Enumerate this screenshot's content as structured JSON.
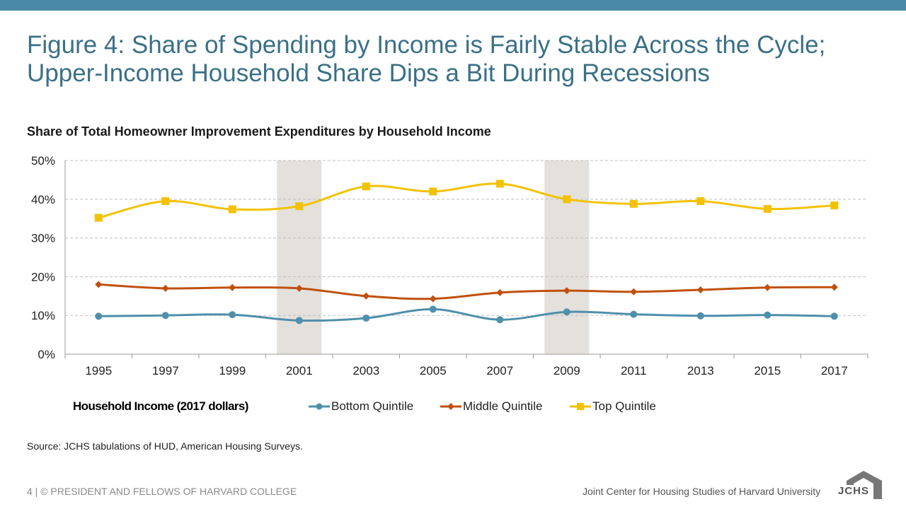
{
  "slide": {
    "title": "Figure 4: Share of Spending by Income is Fairly Stable Across the Cycle; Upper-Income Household Share Dips a Bit During Recessions",
    "source": "Source: JCHS tabulations of HUD, American Housing Surveys.",
    "footer_left": "4 | © PRESIDENT AND FELLOWS OF HARVARD COLLEGE",
    "footer_right": "Joint Center for Housing Studies of Harvard University",
    "logo_text": "JCHS"
  },
  "colors": {
    "top_bar": "#4a8aa8",
    "title": "#3a7086",
    "bottom": "#4f8fab",
    "middle": "#c0500c",
    "top": "#f2c200",
    "recession": "#e4e0db",
    "grid": "#bfbfbf"
  },
  "chart_data": {
    "type": "line",
    "title": "Share of Total Homeowner Improvement Expenditures by Household Income",
    "legend_title": "Household Income (2017 dollars)",
    "legend_position": "bottom",
    "x": [
      "1995",
      "1997",
      "1999",
      "2001",
      "2003",
      "2005",
      "2007",
      "2009",
      "2011",
      "2013",
      "2015",
      "2017"
    ],
    "ylim": [
      0,
      50
    ],
    "yticks": [
      "0%",
      "10%",
      "20%",
      "30%",
      "40%",
      "50%"
    ],
    "grid": "horizontal dashed",
    "recession_shading": [
      "2001",
      "2009"
    ],
    "series": [
      {
        "name": "Bottom Quintile",
        "marker": "circle",
        "values": [
          9.8,
          10.0,
          10.2,
          8.7,
          9.3,
          11.6,
          8.9,
          10.9,
          10.3,
          9.9,
          10.1,
          9.8
        ]
      },
      {
        "name": "Middle Quintile",
        "marker": "diamond",
        "values": [
          18.0,
          17.0,
          17.2,
          17.0,
          15.0,
          14.3,
          15.9,
          16.4,
          16.1,
          16.6,
          17.2,
          17.3
        ]
      },
      {
        "name": "Top Quintile",
        "marker": "square",
        "values": [
          35.2,
          39.5,
          37.4,
          38.2,
          43.3,
          42.0,
          44.0,
          40.0,
          38.8,
          39.5,
          37.5,
          38.4
        ]
      }
    ]
  }
}
